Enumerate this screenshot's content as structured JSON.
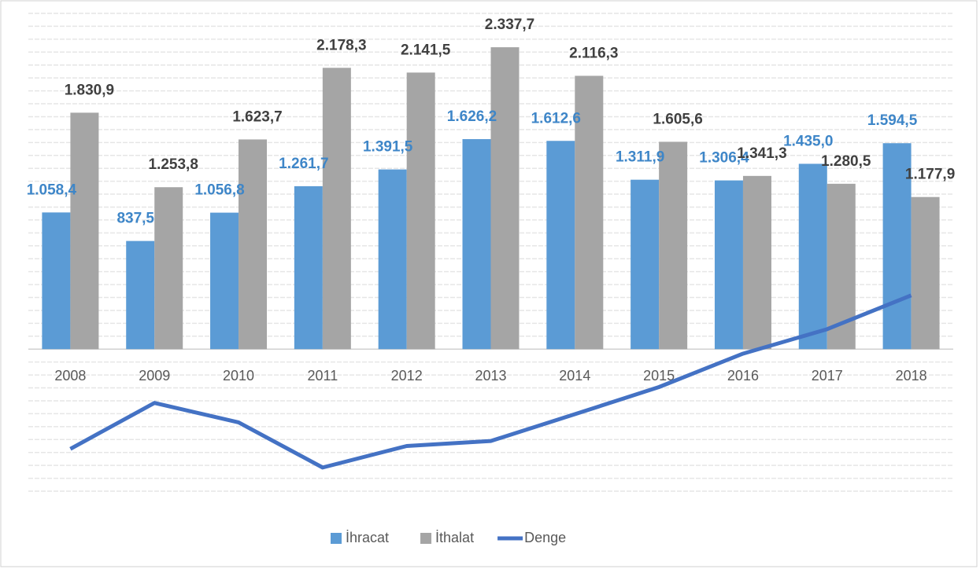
{
  "chart_data": {
    "type": "bar",
    "categories": [
      "2008",
      "2009",
      "2010",
      "2011",
      "2012",
      "2013",
      "2014",
      "2015",
      "2016",
      "2017",
      "2018"
    ],
    "series": [
      {
        "name": "İhracat",
        "color": "#5b9bd5",
        "label_color": "#3e86c8",
        "values": [
          1058.4,
          837.5,
          1056.8,
          1261.7,
          1391.5,
          1626.2,
          1612.6,
          1311.9,
          1306.4,
          1435.0,
          1594.5
        ],
        "value_labels": [
          "1.058,4",
          "837,5",
          "1.056,8",
          "1.261,7",
          "1.391,5",
          "1.626,2",
          "1.612,6",
          "1.311,9",
          "1.306,4",
          "1.435,0",
          "1.594,5"
        ]
      },
      {
        "name": "İthalat",
        "color": "#a5a5a5",
        "label_color": "#404040",
        "values": [
          1830.9,
          1253.8,
          1623.7,
          2178.3,
          2141.5,
          2337.7,
          2116.3,
          1605.6,
          1341.3,
          1280.5,
          1177.9
        ],
        "value_labels": [
          "1.830,9",
          "1.253,8",
          "1.623,7",
          "2.178,3",
          "2.141,5",
          "2.337,7",
          "2.116,3",
          "1.605,6",
          "1.341,3",
          "1.280,5",
          "1.177,9"
        ]
      },
      {
        "name": "Denge",
        "color": "#4472c4",
        "type": "line",
        "values": [
          -772.5,
          -416.3,
          -566.9,
          -916.6,
          -750.0,
          -711.5,
          -503.7,
          -293.7,
          -34.9,
          154.5,
          416.6
        ]
      }
    ],
    "ylim": [
      -1100,
      2600
    ],
    "yticks": [
      -1100,
      -1000,
      -900,
      -800,
      -700,
      -600,
      -500,
      -400,
      -300,
      -200,
      -100,
      0,
      100,
      200,
      300,
      400,
      500,
      600,
      700,
      800,
      900,
      1000,
      1100,
      1200,
      1300,
      1400,
      1500,
      1600,
      1700,
      1800,
      1900,
      2000,
      2100,
      2200,
      2300,
      2400,
      2500,
      2600
    ],
    "grid": true,
    "legend": "bottom"
  }
}
